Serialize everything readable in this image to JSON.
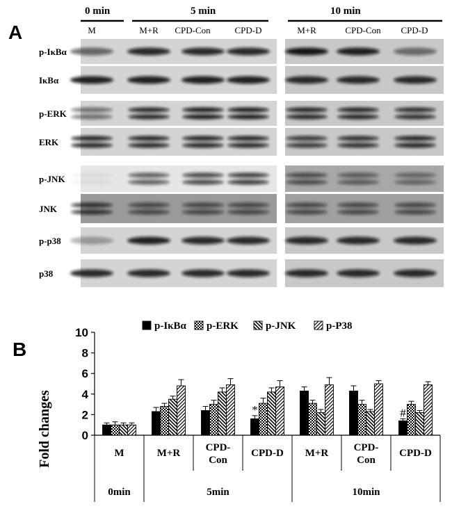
{
  "panel_a": {
    "label": "A",
    "time_headers": [
      "0 min",
      "5 min",
      "10 min"
    ],
    "lane_labels_left": [
      "M",
      "M+R",
      "CPD-Con",
      "CPD-D"
    ],
    "lane_labels_right": [
      "M+R",
      "CPD-Con",
      "CPD-D"
    ],
    "blot_rows": [
      {
        "label": "p-IκBα",
        "intensities": [
          0.55,
          0.85,
          0.85,
          0.85,
          0.95,
          0.9,
          0.5
        ]
      },
      {
        "label": "IκBα",
        "intensities": [
          0.9,
          0.9,
          0.9,
          0.9,
          0.85,
          0.85,
          0.85
        ]
      },
      {
        "label": "p-ERK",
        "intensities": [
          0.5,
          0.85,
          0.9,
          0.9,
          0.85,
          0.85,
          0.8
        ]
      },
      {
        "label": "ERK",
        "intensities": [
          0.85,
          0.85,
          0.85,
          0.85,
          0.75,
          0.8,
          0.85
        ]
      },
      {
        "label": "p-JNK",
        "intensities": [
          0.05,
          0.6,
          0.7,
          0.75,
          0.6,
          0.5,
          0.45
        ]
      },
      {
        "label": "JNK",
        "intensities": [
          0.75,
          0.6,
          0.6,
          0.6,
          0.6,
          0.6,
          0.6
        ]
      },
      {
        "label": "p-p38",
        "intensities": [
          0.3,
          0.9,
          0.85,
          0.85,
          0.85,
          0.85,
          0.85
        ]
      },
      {
        "label": "p38",
        "intensities": [
          0.85,
          0.85,
          0.85,
          0.85,
          0.85,
          0.85,
          0.85
        ]
      }
    ]
  },
  "panel_b": {
    "label": "B",
    "chart_data": {
      "type": "bar",
      "ylabel": "Fold changes",
      "ylim": [
        0,
        10
      ],
      "yticks": [
        0,
        2,
        4,
        6,
        8,
        10
      ],
      "categories": [
        "M",
        "M+R",
        "CPD-Con",
        "CPD-D",
        "M+R",
        "CPD-Con",
        "CPD-D"
      ],
      "category_lines": [
        [
          "M"
        ],
        [
          "M+R"
        ],
        [
          "CPD-",
          "Con"
        ],
        [
          "CPD-D"
        ],
        [
          "M+R"
        ],
        [
          "CPD-",
          "Con"
        ],
        [
          "CPD-D"
        ]
      ],
      "groups": [
        {
          "label": "0min",
          "span": [
            0,
            0
          ]
        },
        {
          "label": "5min",
          "span": [
            1,
            3
          ]
        },
        {
          "label": "10min",
          "span": [
            4,
            6
          ]
        }
      ],
      "legend_position": "top",
      "series": [
        {
          "name": "p-IκBα",
          "pattern": "solid",
          "values": [
            1.0,
            2.3,
            2.4,
            1.6,
            4.3,
            4.3,
            1.4
          ],
          "errors": [
            0.2,
            0.4,
            0.4,
            0.3,
            0.4,
            0.5,
            0.2
          ]
        },
        {
          "name": "p-ERK",
          "pattern": "check",
          "values": [
            1.0,
            2.8,
            3.0,
            3.1,
            3.1,
            3.0,
            3.0
          ],
          "errors": [
            0.3,
            0.3,
            0.4,
            0.5,
            0.3,
            0.4,
            0.3
          ]
        },
        {
          "name": "p-JNK",
          "pattern": "backslash",
          "values": [
            1.0,
            3.5,
            4.2,
            4.2,
            2.2,
            2.3,
            2.2
          ],
          "errors": [
            0.2,
            0.3,
            0.4,
            0.4,
            0.3,
            0.2,
            0.2
          ]
        },
        {
          "name": "p-P38",
          "pattern": "slash",
          "values": [
            1.0,
            4.8,
            4.9,
            4.7,
            4.9,
            5.0,
            4.9
          ],
          "errors": [
            0.2,
            0.6,
            0.6,
            0.6,
            0.7,
            0.3,
            0.3
          ]
        }
      ],
      "annotations": [
        {
          "text": "*",
          "category_index": 3,
          "series_index": 0
        },
        {
          "text": "#",
          "category_index": 6,
          "series_index": 0
        }
      ]
    }
  }
}
